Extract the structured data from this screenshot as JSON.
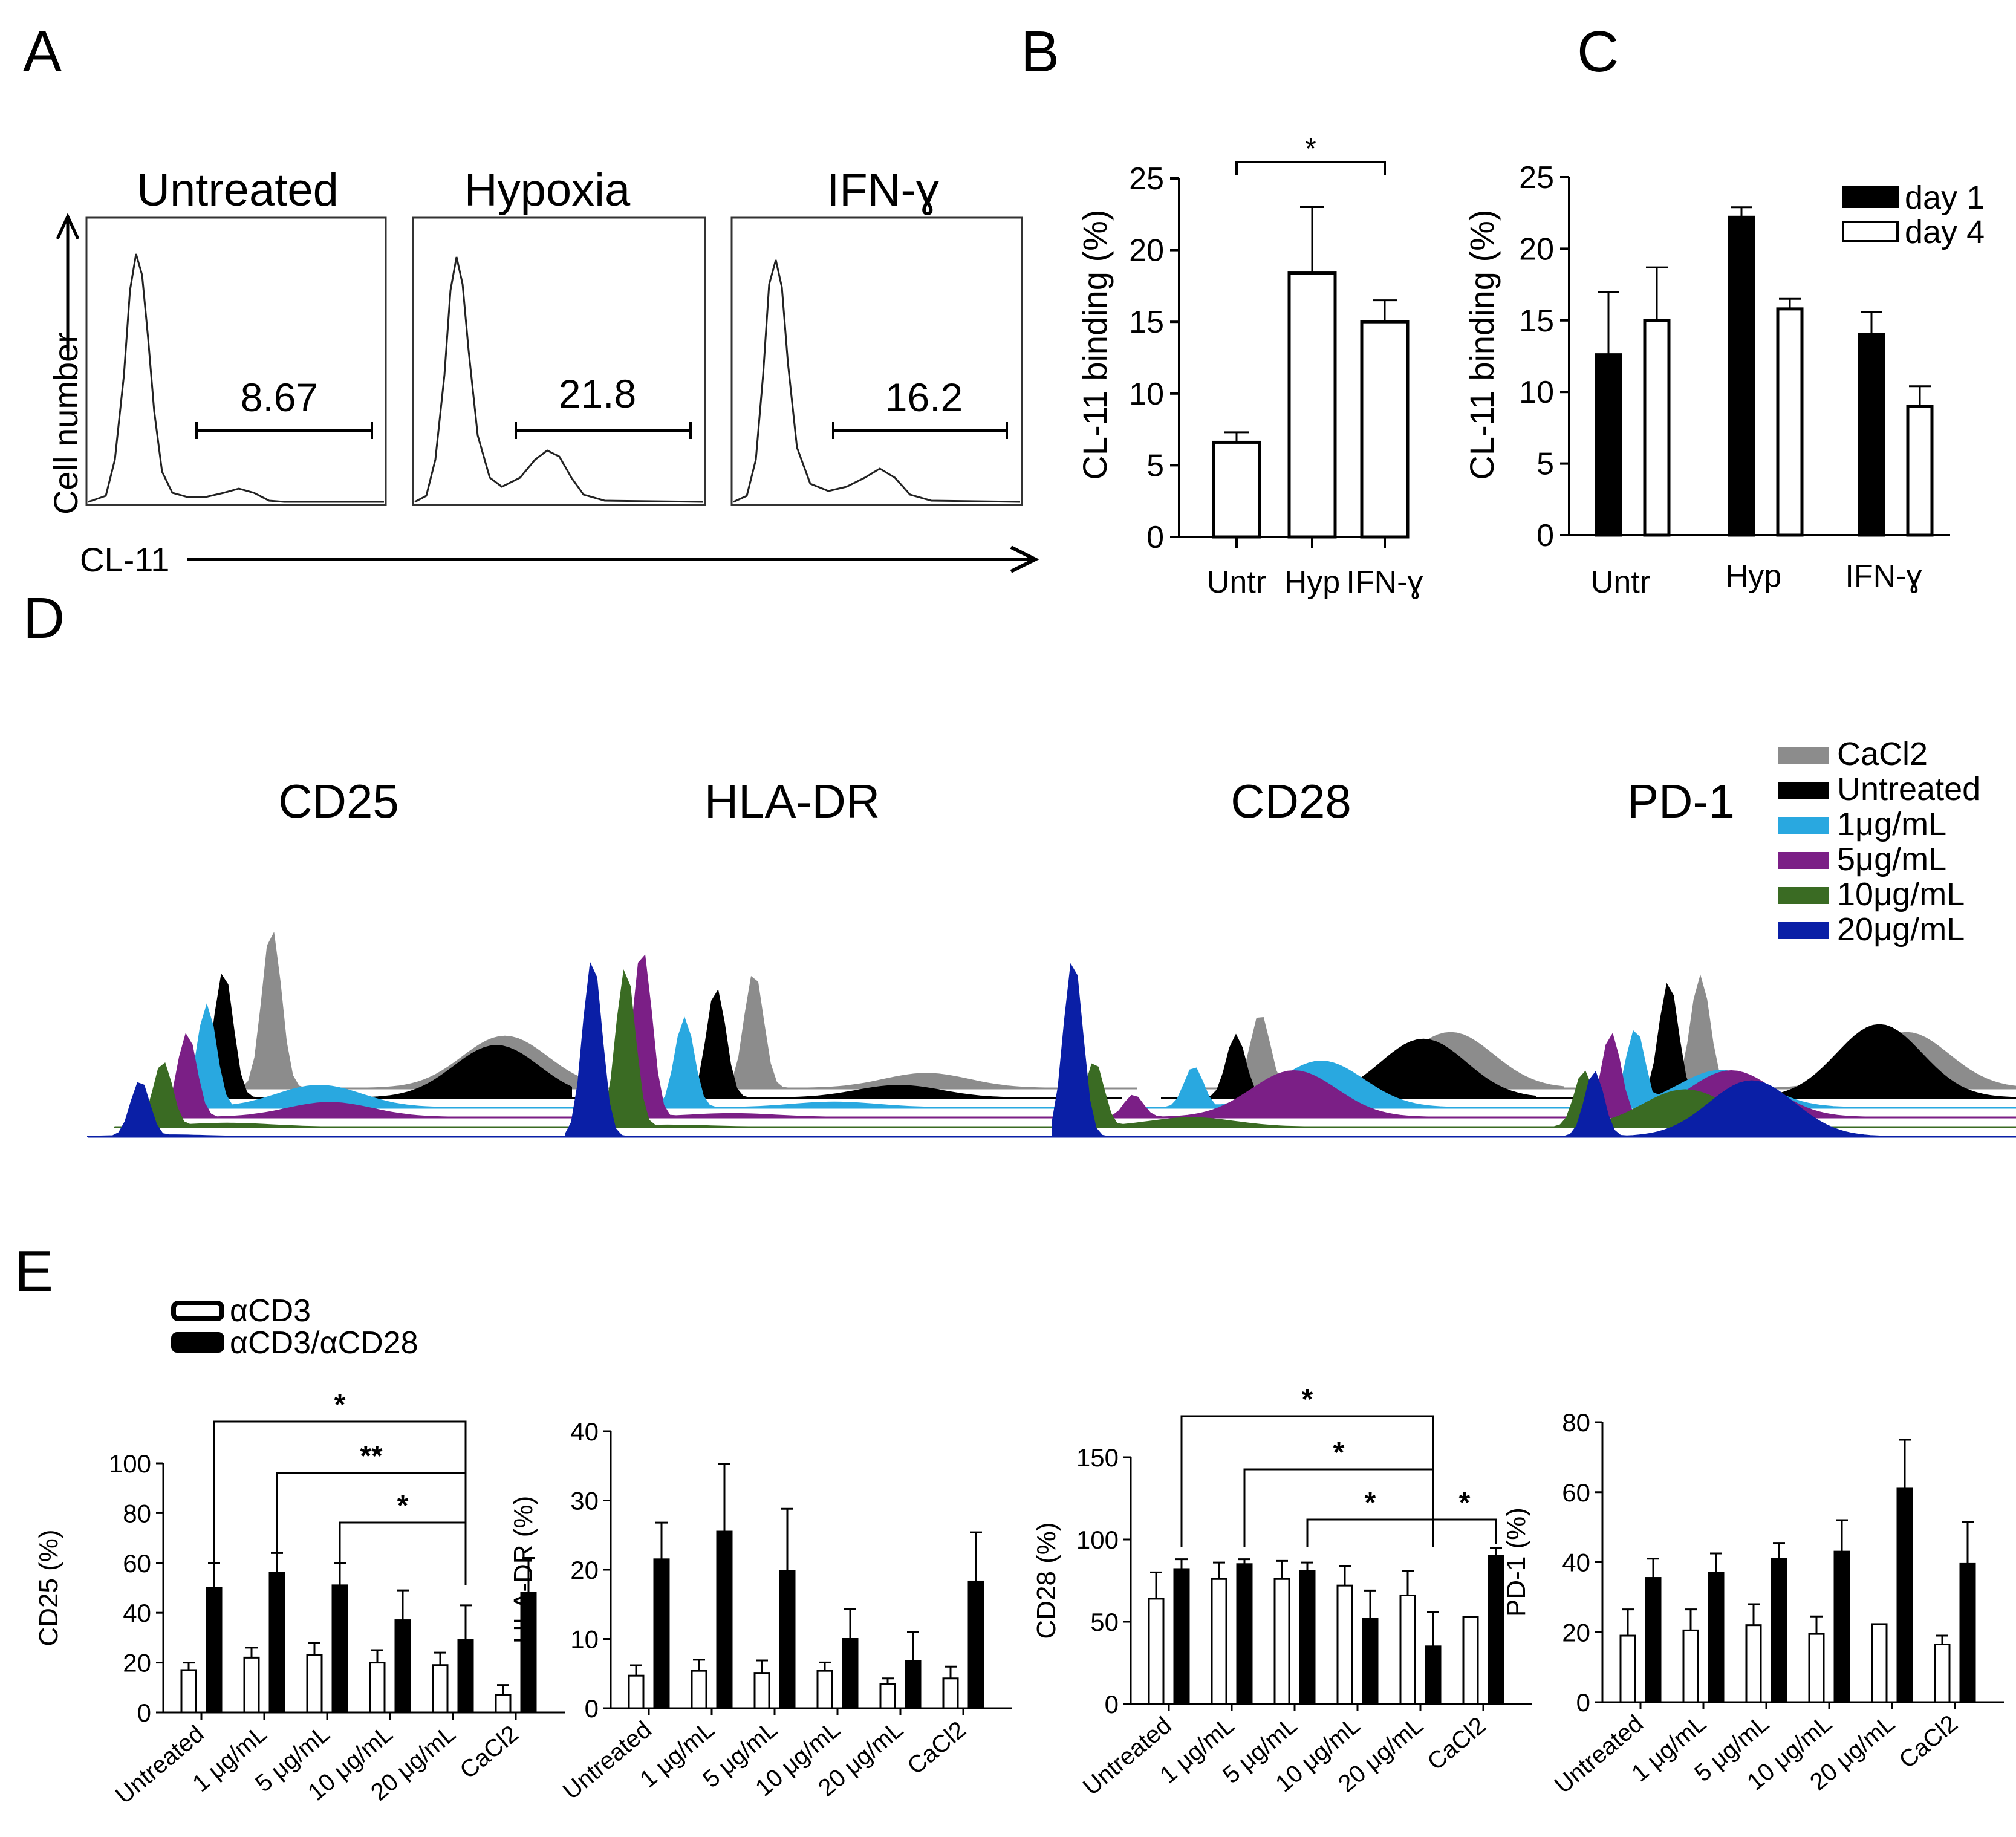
{
  "panel_letters": [
    "A",
    "B",
    "C",
    "D",
    "E"
  ],
  "panel_a": {
    "y_label": "Cell number",
    "x_label": "CL-11",
    "histograms": [
      {
        "title": "Untreated",
        "gate_value": "8.67"
      },
      {
        "title": "Hypoxia",
        "gate_value": "21.8"
      },
      {
        "title": "IFN-ɣ",
        "gate_value": "16.2"
      }
    ]
  },
  "panel_d": {
    "titles": [
      "CD25",
      "HLA-DR",
      "CD28",
      "PD-1"
    ],
    "legend": [
      {
        "label": "CaCl2",
        "color": "#8c8c8c"
      },
      {
        "label": "Untreated",
        "color": "#000000"
      },
      {
        "label": "1μg/mL",
        "color": "#29a8e0"
      },
      {
        "label": "5μg/mL",
        "color": "#7b1f86"
      },
      {
        "label": "10μg/mL",
        "color": "#3a6b23"
      },
      {
        "label": "20μg/mL",
        "color": "#0a1fa6"
      }
    ]
  },
  "panel_e_legend": {
    "open_label": "αCD3",
    "filled_label": "αCD3/αCD28"
  },
  "chart_data": [
    {
      "id": "B",
      "type": "bar",
      "categories": [
        "Untr",
        "Hyp",
        "IFN-ɣ"
      ],
      "values": [
        6.6,
        18.4,
        15.0
      ],
      "errors": [
        0.7,
        4.6,
        1.5
      ],
      "ylabel": "CL-11 binding (%)",
      "ylim": [
        0,
        25
      ],
      "yticks": [
        0,
        5,
        10,
        15,
        20,
        25
      ],
      "significance": [
        {
          "from": 0,
          "to": 2,
          "label": "*"
        }
      ]
    },
    {
      "id": "C",
      "type": "bar",
      "categories": [
        "Untr",
        "Hyp",
        "IFN-ɣ"
      ],
      "series": [
        {
          "name": "day 1",
          "values": [
            12.6,
            22.2,
            14.0
          ],
          "errors": [
            4.4,
            0.7,
            1.6
          ]
        },
        {
          "name": "day 4",
          "values": [
            15.0,
            15.8,
            9.0
          ],
          "errors": [
            3.7,
            0.7,
            1.4
          ]
        }
      ],
      "ylabel": "CL-11 binding (%)",
      "ylim": [
        0,
        25
      ],
      "yticks": [
        0,
        5,
        10,
        15,
        20,
        25
      ],
      "legend": "top-right"
    },
    {
      "id": "E1",
      "type": "bar",
      "categories": [
        "Untreated",
        "1 μg/mL",
        "5 μg/mL",
        "10 μg/mL",
        "20 μg/mL",
        "CaCl2"
      ],
      "series": [
        {
          "name": "αCD3",
          "values": [
            17,
            22,
            23,
            20,
            19,
            7
          ],
          "errors": [
            3,
            4,
            5,
            5,
            5,
            4
          ]
        },
        {
          "name": "αCD3/αCD28",
          "values": [
            50,
            56,
            51,
            37,
            29,
            48
          ],
          "errors": [
            10,
            8,
            9,
            12,
            14,
            14
          ]
        }
      ],
      "ylabel": "CD25 (%)",
      "ylim": [
        0,
        100
      ],
      "yticks": [
        0,
        20,
        40,
        60,
        80,
        100
      ],
      "significance": [
        {
          "from": 0,
          "to": 4,
          "label": "*"
        },
        {
          "from": 1,
          "to": 4,
          "label": "**"
        },
        {
          "from": 2,
          "to": 4,
          "label": "*"
        }
      ]
    },
    {
      "id": "E2",
      "type": "bar",
      "categories": [
        "Untreated",
        "1 μg/mL",
        "5 μg/mL",
        "10  μg/mL",
        "20  μg/mL",
        "CaCl2"
      ],
      "series": [
        {
          "name": "αCD3",
          "values": [
            4.7,
            5.4,
            5.1,
            5.4,
            3.5,
            4.3
          ],
          "errors": [
            1.5,
            1.6,
            1.8,
            1.2,
            0.8,
            1.7
          ]
        },
        {
          "name": "αCD3/αCD28",
          "values": [
            21.5,
            25.5,
            19.8,
            10.0,
            6.8,
            18.3
          ],
          "errors": [
            5.3,
            9.8,
            9.0,
            4.3,
            4.2,
            7.1
          ]
        }
      ],
      "ylabel": "HLA-DR  (%)",
      "ylim": [
        0,
        40
      ],
      "yticks": [
        0,
        10,
        20,
        30,
        40
      ]
    },
    {
      "id": "E3",
      "type": "bar",
      "categories": [
        "Untreated",
        "1 μg/mL",
        "5 μg/mL",
        "10  μg/mL",
        "20  μg/mL",
        "CaCl2"
      ],
      "series": [
        {
          "name": "αCD3",
          "values": [
            64,
            76,
            76,
            72,
            66,
            53
          ],
          "errors": [
            16,
            10,
            11,
            12,
            15,
            0
          ]
        },
        {
          "name": "αCD3/αCD28",
          "values": [
            82,
            85,
            81,
            52,
            35,
            90
          ],
          "errors": [
            6,
            3,
            5,
            17,
            21,
            5
          ]
        }
      ],
      "ylabel": "CD28 (%)",
      "ylim": [
        0,
        150
      ],
      "yticks": [
        0,
        50,
        100,
        150
      ],
      "significance": [
        {
          "from": 0,
          "to": 4,
          "label": "*"
        },
        {
          "from": 1,
          "to": 4,
          "label": "*"
        },
        {
          "from": 2,
          "to": 4,
          "label": "*"
        },
        {
          "from": 4,
          "to": 5,
          "label": "*"
        }
      ]
    },
    {
      "id": "E4",
      "type": "bar",
      "categories": [
        "Untreated",
        "1 μg/mL",
        "5 μg/mL",
        "10  μg/mL",
        "20  μg/mL",
        "CaCl2"
      ],
      "series": [
        {
          "name": "αCD3",
          "values": [
            19,
            20.5,
            22,
            19.5,
            22.3,
            16.5
          ],
          "errors": [
            7.5,
            6,
            6,
            5,
            0,
            2.5
          ]
        },
        {
          "name": "αCD3/αCD28",
          "values": [
            35.5,
            37,
            41,
            43,
            61,
            39.5
          ],
          "errors": [
            5.5,
            5.5,
            4.5,
            9,
            14,
            12
          ]
        }
      ],
      "ylabel": "PD-1 (%)",
      "ylim": [
        0,
        80
      ],
      "yticks": [
        0,
        20,
        40,
        60,
        80
      ]
    }
  ]
}
